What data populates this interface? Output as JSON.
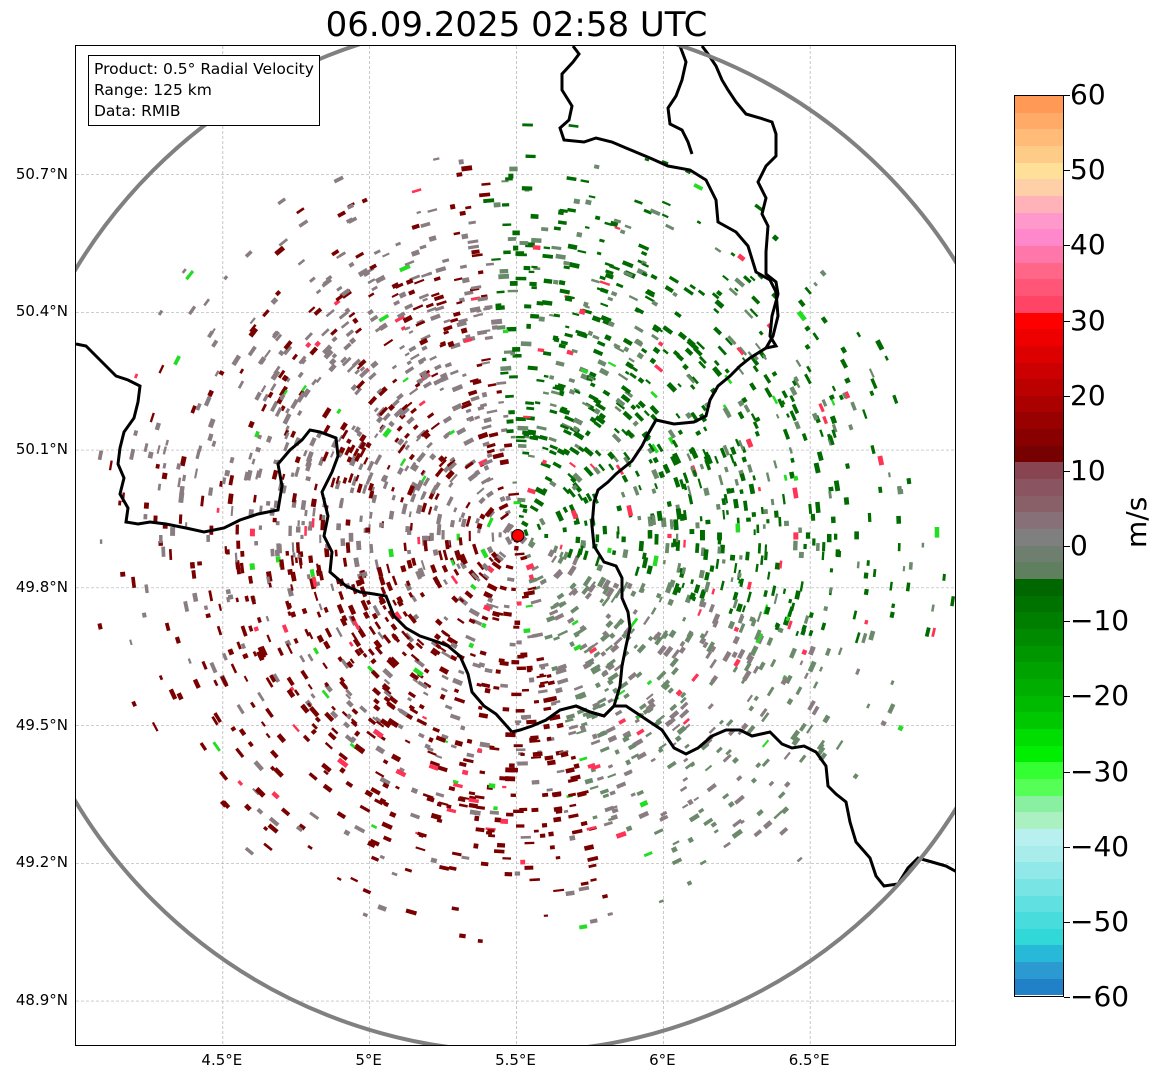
{
  "title": "06.09.2025 02:58 UTC",
  "info_box": {
    "lines": [
      "Product: 0.5° Radial Velocity",
      "Range: 125 km",
      "Data: RMIB"
    ]
  },
  "map": {
    "lon_range": [
      4.0,
      7.0
    ],
    "lat_range": [
      48.8,
      50.98
    ],
    "radar_site": {
      "lon": 5.505,
      "lat": 49.914
    },
    "range_ring_km": 125,
    "grid": true,
    "lat_ticks": [
      {
        "value": 48.9,
        "label": "48.9°N"
      },
      {
        "value": 49.2,
        "label": "49.2°N"
      },
      {
        "value": 49.5,
        "label": "49.5°N"
      },
      {
        "value": 49.8,
        "label": "49.8°N"
      },
      {
        "value": 50.1,
        "label": "50.1°N"
      },
      {
        "value": 50.4,
        "label": "50.4°N"
      },
      {
        "value": 50.7,
        "label": "50.7°N"
      }
    ],
    "lon_ticks": [
      {
        "value": 4.5,
        "label": "4.5°E"
      },
      {
        "value": 5.0,
        "label": "5°E"
      },
      {
        "value": 5.5,
        "label": "5.5°E"
      },
      {
        "value": 6.0,
        "label": "6°E"
      },
      {
        "value": 6.5,
        "label": "6.5°E"
      }
    ],
    "colors": {
      "ring": "#808080",
      "border": "#000000",
      "site": "#ff0000",
      "grid": "#b0b0b0",
      "outbound": "#7a0000",
      "inbound": "#006b00",
      "neutral": "#8a7d82",
      "neutral_green": "#6b8a6b"
    }
  },
  "colorbar": {
    "unit": "m/s",
    "range": [
      -60,
      60
    ],
    "tick_labels": [
      "60",
      "50",
      "40",
      "30",
      "20",
      "10",
      "0",
      "−10",
      "−20",
      "−30",
      "−40",
      "−50",
      "−60"
    ],
    "colors_top_to_bottom": [
      "#ff9955",
      "#ffaa66",
      "#ffbb77",
      "#ffcc88",
      "#ffe099",
      "#ffd0a8",
      "#ffb3b8",
      "#ff99cc",
      "#ff88cc",
      "#ff77aa",
      "#ff6688",
      "#ff5577",
      "#ff4466",
      "#ff0000",
      "#ee0000",
      "#dd0000",
      "#cc0000",
      "#bb0000",
      "#aa0000",
      "#990000",
      "#880000",
      "#770000",
      "#884450",
      "#8a5560",
      "#8a6068",
      "#887078",
      "#7f7f7f",
      "#6f7f6f",
      "#5f7f5f",
      "#006600",
      "#007200",
      "#007e00",
      "#008a00",
      "#009600",
      "#00a200",
      "#00ae00",
      "#00ba00",
      "#00c800",
      "#00dd00",
      "#00ee00",
      "#33ff33",
      "#55ff55",
      "#88f0a0",
      "#aaf0c0",
      "#b8f0f0",
      "#a8ecec",
      "#90e8e8",
      "#78e4e4",
      "#60e0e0",
      "#48dcdc",
      "#30d8d8",
      "#28b8d8",
      "#2a9ad0",
      "#2080c8"
    ]
  }
}
